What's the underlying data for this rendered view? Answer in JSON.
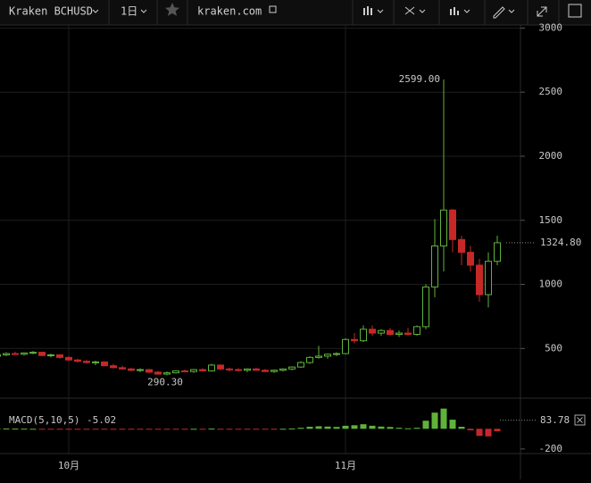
{
  "toolbar": {
    "symbol": "Kraken BCHUSD",
    "interval": "1日",
    "site": "kraken.com"
  },
  "chart_data": [
    {
      "type": "candlestick",
      "categories": [
        null,
        null,
        null,
        null,
        null,
        null,
        null,
        null,
        "10月",
        null,
        null,
        null,
        null,
        null,
        null,
        null,
        null,
        null,
        null,
        null,
        null,
        null,
        null,
        null,
        null,
        null,
        null,
        null,
        null,
        null,
        null,
        null,
        null,
        null,
        null,
        null,
        null,
        null,
        null,
        "11月",
        null,
        null,
        null,
        null,
        null,
        null,
        null,
        null,
        null,
        null,
        null,
        null,
        null,
        null,
        null,
        null,
        null
      ],
      "ohlc": [
        [
          440,
          455,
          430,
          450
        ],
        [
          450,
          470,
          440,
          460
        ],
        [
          460,
          475,
          450,
          455
        ],
        [
          455,
          470,
          445,
          465
        ],
        [
          465,
          480,
          455,
          470
        ],
        [
          470,
          475,
          440,
          445
        ],
        [
          445,
          460,
          430,
          450
        ],
        [
          450,
          455,
          420,
          430
        ],
        [
          430,
          440,
          400,
          410
        ],
        [
          410,
          420,
          390,
          400
        ],
        [
          400,
          410,
          380,
          390
        ],
        [
          390,
          405,
          370,
          395
        ],
        [
          395,
          400,
          360,
          365
        ],
        [
          365,
          380,
          345,
          350
        ],
        [
          350,
          365,
          335,
          340
        ],
        [
          340,
          350,
          320,
          330
        ],
        [
          330,
          345,
          315,
          335
        ],
        [
          335,
          340,
          305,
          315
        ],
        [
          315,
          325,
          295,
          300
        ],
        [
          300,
          320,
          290.3,
          310
        ],
        [
          310,
          330,
          305,
          325
        ],
        [
          325,
          335,
          315,
          320
        ],
        [
          320,
          340,
          310,
          335
        ],
        [
          335,
          345,
          320,
          325
        ],
        [
          325,
          380,
          320,
          370
        ],
        [
          370,
          375,
          330,
          340
        ],
        [
          340,
          350,
          320,
          335
        ],
        [
          335,
          345,
          320,
          330
        ],
        [
          330,
          345,
          315,
          340
        ],
        [
          340,
          350,
          325,
          330
        ],
        [
          330,
          340,
          315,
          320
        ],
        [
          320,
          335,
          310,
          330
        ],
        [
          330,
          345,
          320,
          340
        ],
        [
          340,
          360,
          330,
          355
        ],
        [
          355,
          400,
          350,
          390
        ],
        [
          390,
          440,
          380,
          430
        ],
        [
          430,
          520,
          420,
          440
        ],
        [
          440,
          460,
          420,
          455
        ],
        [
          455,
          470,
          440,
          460
        ],
        [
          460,
          580,
          455,
          570
        ],
        [
          570,
          620,
          540,
          560
        ],
        [
          560,
          680,
          550,
          650
        ],
        [
          650,
          680,
          600,
          620
        ],
        [
          620,
          650,
          600,
          640
        ],
        [
          640,
          660,
          600,
          610
        ],
        [
          610,
          640,
          590,
          620
        ],
        [
          620,
          660,
          600,
          610
        ],
        [
          610,
          680,
          600,
          670
        ],
        [
          670,
          1000,
          650,
          980
        ],
        [
          980,
          1510,
          900,
          1300
        ],
        [
          1300,
          2599,
          1100,
          1580
        ],
        [
          1580,
          1590,
          1250,
          1350
        ],
        [
          1350,
          1380,
          1150,
          1250
        ],
        [
          1250,
          1300,
          1100,
          1150
        ],
        [
          1150,
          1200,
          865,
          920
        ],
        [
          920,
          1250,
          820,
          1180
        ],
        [
          1180,
          1380,
          1150,
          1324.8
        ]
      ],
      "ylim": [
        112,
        3024
      ],
      "yticks": [
        500,
        1000,
        1500,
        2000,
        2500,
        3000
      ],
      "grid": true,
      "up_color": "#5fb33a",
      "down_color": "#c62828",
      "high_label": {
        "value": 2599,
        "label": "2599.00"
      },
      "low_label": {
        "value": 290.3,
        "label": "290.30"
      },
      "last_price": {
        "value": 1324.8,
        "label": "1324.80"
      }
    },
    {
      "type": "bar",
      "title": "MACD(5,10,5)",
      "current": -5.02,
      "values": [
        2,
        3,
        2,
        1,
        0,
        -2,
        -3,
        -4,
        -6,
        -8,
        -9,
        -7,
        -8,
        -9,
        -8,
        -7,
        -6,
        -6,
        -7,
        -6,
        -3,
        -1,
        0,
        -1,
        2,
        -1,
        -2,
        -2,
        -1,
        -2,
        -3,
        -2,
        0,
        3,
        10,
        20,
        25,
        22,
        18,
        30,
        35,
        45,
        30,
        22,
        18,
        10,
        5,
        10,
        80,
        160,
        200,
        90,
        20,
        -15,
        -70,
        -75,
        -25
      ],
      "ylim": [
        -245,
        250
      ],
      "yticks": [
        -200
      ],
      "last_value": 83.78,
      "up_color": "#5fb33a",
      "down_color": "#c62828"
    }
  ]
}
